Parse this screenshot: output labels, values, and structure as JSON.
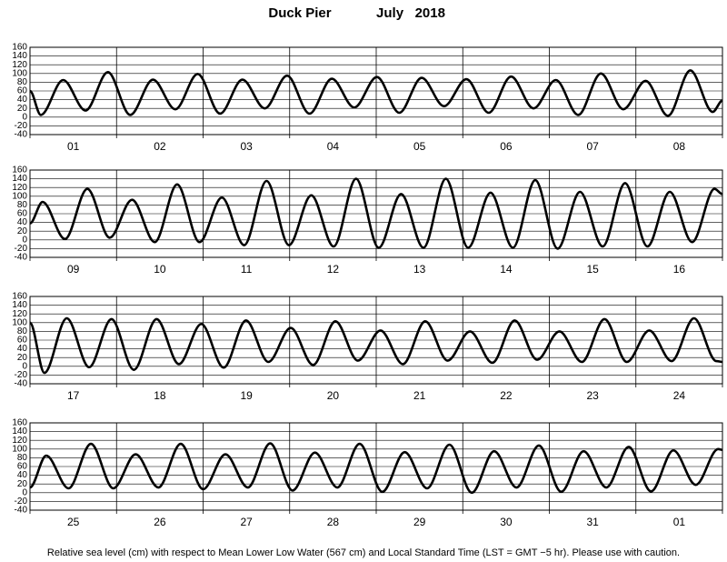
{
  "title": "Duck Pier",
  "date": "July   2018",
  "footnote": "Relative sea level (cm) with respect to Mean Lower Low Water (567 cm) and Local Standard Time (LST = GMT −5 hr). Please use with caution.",
  "chart_data": [
    {
      "type": "line",
      "color": "#000000",
      "grid": true,
      "categories": [
        "01",
        "02",
        "03",
        "04",
        "05",
        "06",
        "07",
        "08"
      ],
      "xlim": [
        0,
        192
      ],
      "xticks": [
        0,
        24,
        48,
        72,
        96,
        120,
        144,
        168,
        192
      ],
      "ylim": [
        -40,
        160
      ],
      "yticks": [
        -40,
        -20,
        0,
        20,
        40,
        60,
        80,
        100,
        120,
        140,
        160
      ],
      "x": [
        0,
        3,
        9.2,
        15.4,
        21.6,
        27.8,
        34.1,
        40.3,
        46.5,
        52.7,
        58.9,
        65.1,
        71.3,
        77.5,
        83.7,
        89.9,
        96.2,
        102.4,
        108.6,
        114.8,
        121,
        127.2,
        133.4,
        139.6,
        145.8,
        152,
        158.3,
        164.5,
        170.7,
        176.9,
        183.1,
        189.3,
        192
      ],
      "values": [
        60,
        5,
        85,
        15,
        103,
        5,
        86,
        18,
        99,
        8,
        86,
        20,
        95,
        8,
        88,
        22,
        92,
        10,
        90,
        25,
        87,
        10,
        93,
        20,
        85,
        5,
        100,
        18,
        83,
        3,
        107,
        12,
        38
      ]
    },
    {
      "type": "line",
      "color": "#000000",
      "grid": true,
      "categories": [
        "09",
        "10",
        "11",
        "12",
        "13",
        "14",
        "15",
        "16"
      ],
      "xlim": [
        0,
        192
      ],
      "xticks": [
        0,
        24,
        48,
        72,
        96,
        120,
        144,
        168,
        192
      ],
      "ylim": [
        -40,
        160
      ],
      "yticks": [
        -40,
        -20,
        0,
        20,
        40,
        60,
        80,
        100,
        120,
        140,
        160
      ],
      "x": [
        0,
        3.5,
        9.7,
        15.9,
        22.1,
        28.3,
        34.6,
        40.8,
        47,
        53.2,
        59.4,
        65.6,
        71.8,
        78,
        84.2,
        90.4,
        96.7,
        102.9,
        109.1,
        115.3,
        121.5,
        127.7,
        133.9,
        140.1,
        146.3,
        152.5,
        158.8,
        165,
        171.2,
        177.4,
        183.6,
        189.8,
        192
      ],
      "values": [
        38,
        87,
        2,
        117,
        5,
        92,
        -5,
        127,
        -5,
        97,
        -12,
        135,
        -12,
        102,
        -15,
        140,
        -18,
        105,
        -18,
        140,
        -18,
        108,
        -18,
        137,
        -20,
        110,
        -15,
        130,
        -15,
        110,
        -5,
        117,
        105
      ]
    },
    {
      "type": "line",
      "color": "#000000",
      "grid": true,
      "categories": [
        "17",
        "18",
        "19",
        "20",
        "21",
        "22",
        "23",
        "24"
      ],
      "xlim": [
        0,
        192
      ],
      "xticks": [
        0,
        24,
        48,
        72,
        96,
        120,
        144,
        168,
        192
      ],
      "ylim": [
        -40,
        160
      ],
      "yticks": [
        -40,
        -20,
        0,
        20,
        40,
        60,
        80,
        100,
        120,
        140,
        160
      ],
      "x": [
        0,
        4,
        10.2,
        16.4,
        22.6,
        28.8,
        35.1,
        41.3,
        47.5,
        53.7,
        59.9,
        66.1,
        72.3,
        78.5,
        84.7,
        90.9,
        97.2,
        103.4,
        109.6,
        115.8,
        122,
        128.2,
        134.4,
        140.6,
        146.8,
        153,
        159.3,
        165.5,
        171.7,
        177.9,
        184.1,
        190.3,
        192
      ],
      "values": [
        100,
        -15,
        110,
        -2,
        108,
        -8,
        108,
        5,
        97,
        -3,
        105,
        10,
        88,
        3,
        103,
        13,
        82,
        5,
        103,
        13,
        80,
        8,
        105,
        15,
        80,
        10,
        108,
        10,
        82,
        12,
        110,
        12,
        10
      ]
    },
    {
      "type": "line",
      "color": "#000000",
      "grid": true,
      "categories": [
        "25",
        "26",
        "27",
        "28",
        "29",
        "30",
        "31",
        "01"
      ],
      "xlim": [
        0,
        192
      ],
      "xticks": [
        0,
        24,
        48,
        72,
        96,
        120,
        144,
        168,
        192
      ],
      "ylim": [
        -40,
        160
      ],
      "yticks": [
        -40,
        -20,
        0,
        20,
        40,
        60,
        80,
        100,
        120,
        140,
        160
      ],
      "x": [
        0,
        4.5,
        10.7,
        16.9,
        23.1,
        29.3,
        35.6,
        41.8,
        48,
        54.2,
        60.4,
        66.6,
        72.8,
        79,
        85.2,
        91.4,
        97.7,
        103.9,
        110.1,
        116.3,
        122.5,
        128.7,
        134.9,
        141.1,
        147.3,
        153.5,
        159.8,
        166,
        172.2,
        178.4,
        184.6,
        190.8,
        192
      ],
      "values": [
        12,
        85,
        10,
        112,
        10,
        88,
        12,
        112,
        8,
        88,
        12,
        113,
        5,
        92,
        12,
        112,
        2,
        93,
        10,
        110,
        0,
        95,
        12,
        108,
        2,
        95,
        12,
        105,
        3,
        97,
        18,
        100,
        98
      ]
    }
  ]
}
